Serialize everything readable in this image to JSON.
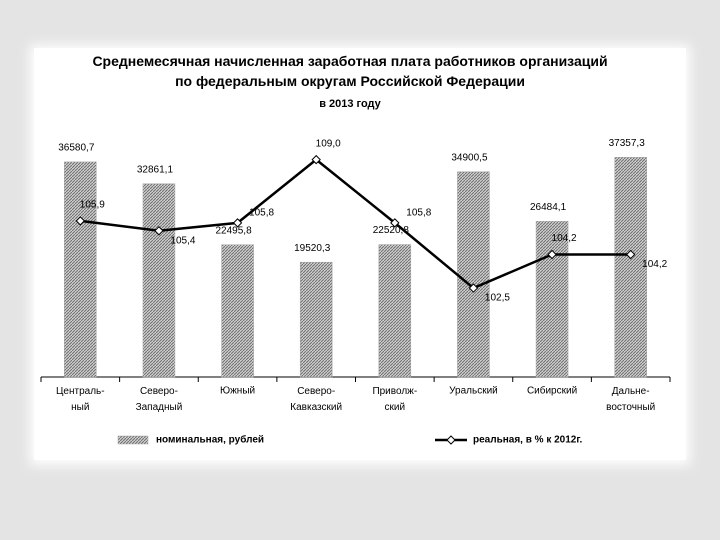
{
  "chart_data": {
    "type": "bar+line",
    "title": "Среднемесячная начисленная заработная плата работников организаций\nпо федеральным округам Российской Федерации",
    "subtitle": "в 2013 году",
    "categories": [
      "Централь-\nный",
      "Северо-\nЗападный",
      "Южный",
      "Северо-\nКавказский",
      "Приволж-\nский",
      "Уральский",
      "Сибирский",
      "Дальне-\nвосточный"
    ],
    "ylim": [
      0,
      42000
    ],
    "y2lim": [
      98,
      110.5
    ],
    "series": [
      {
        "name": "номинальная, рублей",
        "type": "bar",
        "color": "#a6a6a6",
        "values": [
          36580.7,
          32861.1,
          22495.8,
          19520.3,
          22520.8,
          34900.5,
          26484.1,
          37357.3
        ],
        "value_labels": [
          "36580,7",
          "32861,1",
          "22495,8",
          "19520,3",
          "22520,8",
          "34900,5",
          "26484,1",
          "37357,3"
        ]
      },
      {
        "name": "реальная, в % к 2012г.",
        "type": "line",
        "axis": "y2",
        "color": "#000000",
        "values": [
          105.9,
          105.4,
          105.8,
          109.0,
          105.8,
          102.5,
          104.2,
          104.2
        ],
        "value_labels": [
          "105,9",
          "105,4",
          "105,8",
          "109,0",
          "105,8",
          "102,5",
          "104,2",
          "104,2"
        ]
      }
    ],
    "legend": "bottom"
  }
}
